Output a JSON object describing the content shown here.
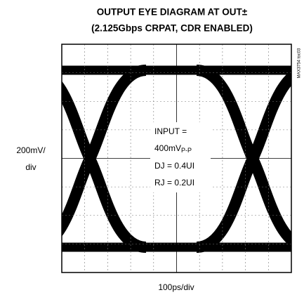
{
  "chart_data": {
    "type": "eye",
    "title": "OUTPUT EYE DIAGRAM AT OUT±",
    "subtitle": "(2.125Gbps CRPAT, CDR ENABLED)",
    "y_label": [
      "200mV/",
      "div"
    ],
    "x_label": "100ps/div",
    "annotation": {
      "line1": "INPUT =",
      "line2": "400mV",
      "line2_sub": "P-P",
      "line3": "DJ = 0.4UI",
      "line4": "RJ = 0.2UI"
    },
    "side_note": "MAX3754 toc03",
    "grid": true
  }
}
